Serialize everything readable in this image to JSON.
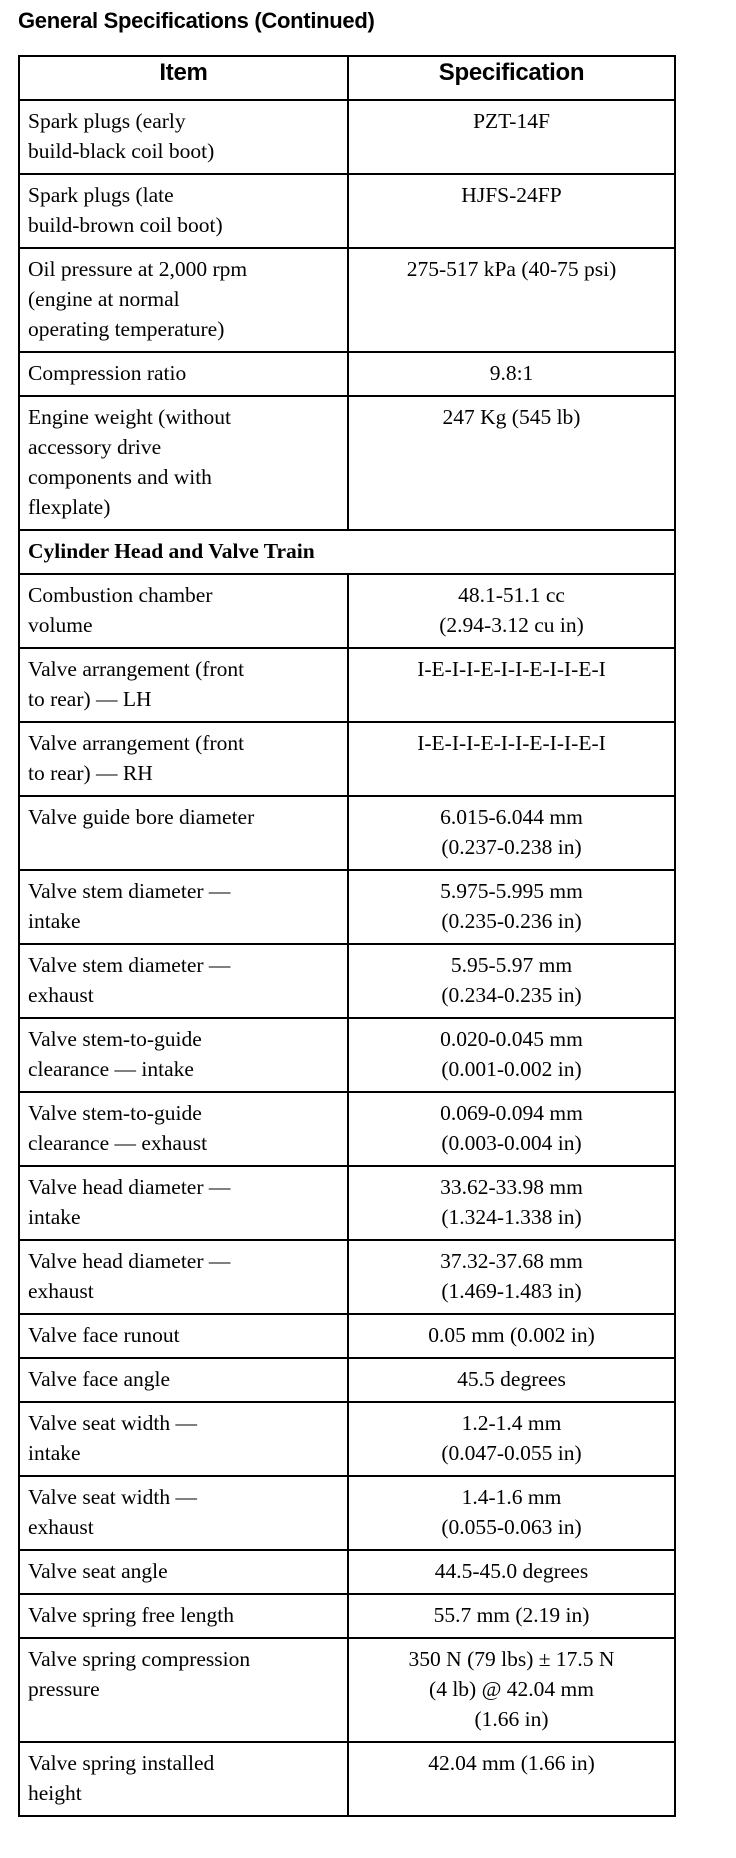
{
  "title": "General Specifications (Continued)",
  "table": {
    "headers": [
      "Item",
      "Specification"
    ],
    "rows_a": [
      {
        "item": "Spark plugs (early\nbuild-black coil boot)",
        "spec": "PZT-14F"
      },
      {
        "item": "Spark plugs (late\nbuild-brown coil boot)",
        "spec": "HJFS-24FP"
      },
      {
        "item": "Oil pressure at 2,000 rpm\n(engine at normal\noperating temperature)",
        "spec": "275-517 kPa (40-75 psi)"
      },
      {
        "item": "Compression ratio",
        "spec": "9.8:1"
      },
      {
        "item": "Engine weight (without\naccessory drive\ncomponents and with\nflexplate)",
        "spec": "247 Kg (545 lb)"
      }
    ],
    "section": "Cylinder Head and Valve Train",
    "rows_b": [
      {
        "item": "Combustion chamber\nvolume",
        "spec": "48.1-51.1 cc\n(2.94-3.12 cu in)"
      },
      {
        "item": "Valve arrangement (front\nto rear) — LH",
        "spec": "I-E-I-I-E-I-I-E-I-I-E-I"
      },
      {
        "item": "Valve arrangement (front\nto rear) — RH",
        "spec": "I-E-I-I-E-I-I-E-I-I-E-I"
      },
      {
        "item": "Valve guide bore diameter",
        "spec": "6.015-6.044 mm\n(0.237-0.238 in)"
      },
      {
        "item": "Valve stem diameter —\nintake",
        "spec": "5.975-5.995 mm\n(0.235-0.236 in)"
      },
      {
        "item": "Valve stem diameter —\nexhaust",
        "spec": "5.95-5.97 mm\n(0.234-0.235 in)"
      },
      {
        "item": "Valve stem-to-guide\nclearance — intake",
        "spec": "0.020-0.045 mm\n(0.001-0.002 in)"
      },
      {
        "item": "Valve stem-to-guide\nclearance — exhaust",
        "spec": "0.069-0.094 mm\n(0.003-0.004 in)"
      },
      {
        "item": "Valve head diameter —\nintake",
        "spec": "33.62-33.98 mm\n(1.324-1.338 in)"
      },
      {
        "item": "Valve head diameter —\nexhaust",
        "spec": "37.32-37.68 mm\n(1.469-1.483 in)"
      },
      {
        "item": "Valve face runout",
        "spec": "0.05 mm (0.002 in)"
      },
      {
        "item": "Valve face angle",
        "spec": "45.5 degrees"
      },
      {
        "item": "Valve seat width —\nintake",
        "spec": "1.2-1.4 mm\n(0.047-0.055 in)"
      },
      {
        "item": "Valve seat width —\nexhaust",
        "spec": "1.4-1.6 mm\n(0.055-0.063 in)"
      },
      {
        "item": "Valve seat angle",
        "spec": "44.5-45.0 degrees"
      },
      {
        "item": "Valve spring free length",
        "spec": "55.7 mm (2.19 in)"
      },
      {
        "item": "Valve spring compression\npressure",
        "spec": "350 N (79 lbs) ± 17.5 N\n(4 lb) @ 42.04 mm\n(1.66 in)"
      },
      {
        "item": "Valve spring installed\nheight",
        "spec": "42.04 mm (1.66 in)"
      }
    ]
  }
}
